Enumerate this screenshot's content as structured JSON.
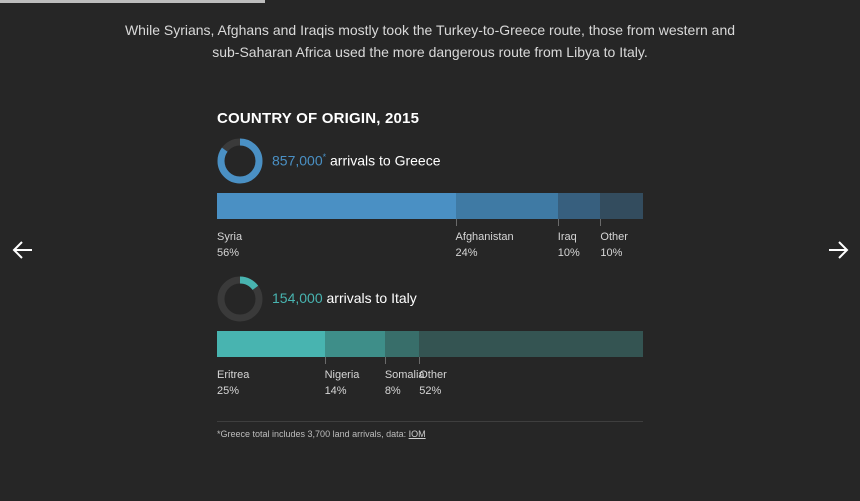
{
  "intro_text": "While Syrians, Afghans and Iraqis mostly took the Turkey-to-Greece route, those from western and sub-Saharan Africa used the more dangerous route from Libya to Italy.",
  "colors": {
    "background": "#262626",
    "greece_accent": "#4a90c4",
    "italy_accent": "#48b4b0"
  },
  "icons": {
    "prev": "arrow-left-icon",
    "next": "arrow-right-icon"
  },
  "chart_data": [
    {
      "type": "bar",
      "title": "COUNTRY OF ORIGIN, 2015",
      "subtitle_number": "857,000",
      "subtitle_asterisk": "*",
      "subtitle_text": " arrivals to Greece",
      "donut_share_percent": 85,
      "categories": [
        "Syria",
        "Afghanistan",
        "Iraq",
        "Other"
      ],
      "values": [
        56,
        24,
        10,
        10
      ],
      "value_labels": [
        "56%",
        "24%",
        "10%",
        "10%"
      ],
      "colors": [
        "#4a90c4",
        "#3f7aa4",
        "#375f7e",
        "#334c5e"
      ]
    },
    {
      "type": "bar",
      "subtitle_number": "154,000",
      "subtitle_text": " arrivals to Italy",
      "donut_share_percent": 15,
      "categories": [
        "Eritrea",
        "Nigeria",
        "Somalia",
        "Other"
      ],
      "values": [
        25,
        14,
        8,
        52
      ],
      "value_labels": [
        "25%",
        "14%",
        "8%",
        "52%"
      ],
      "colors": [
        "#48b4b0",
        "#3e8e89",
        "#386e6a",
        "#345452"
      ]
    }
  ],
  "footnote": {
    "text": "*Greece total includes 3,700 land arrivals, data: ",
    "link_label": "IOM"
  }
}
